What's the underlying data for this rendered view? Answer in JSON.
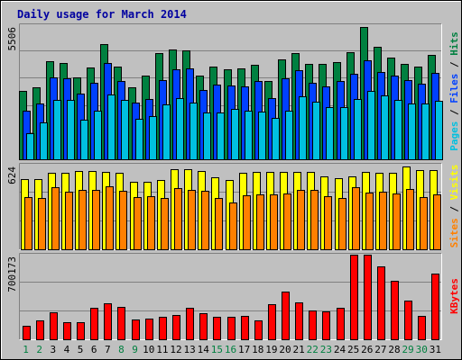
{
  "chart_data": {
    "title": "Daily usage for March 2014",
    "type": "bar",
    "categories": [
      "1",
      "2",
      "3",
      "4",
      "5",
      "6",
      "7",
      "8",
      "9",
      "10",
      "11",
      "12",
      "13",
      "14",
      "15",
      "16",
      "17",
      "18",
      "19",
      "20",
      "21",
      "22",
      "23",
      "24",
      "25",
      "26",
      "27",
      "28",
      "29",
      "30",
      "31"
    ],
    "weekend_days": [
      "1",
      "2",
      "8",
      "9",
      "15",
      "16",
      "22",
      "23",
      "29",
      "30"
    ],
    "panels": [
      {
        "id": "pages-files-hits",
        "max_label": "5506",
        "ymax": 5506,
        "right_label": [
          {
            "text": "Pages",
            "color": "#00c0e0"
          },
          {
            "text": " / ",
            "color": "#000000"
          },
          {
            "text": "Files",
            "color": "#0040ff"
          },
          {
            "text": " / ",
            "color": "#000000"
          },
          {
            "text": "Hits",
            "color": "#008040"
          }
        ],
        "series": [
          {
            "name": "Hits",
            "color": "#008040",
            "values": [
              2790,
              2940,
              4020,
              3950,
              3380,
              3780,
              4730,
              3810,
              2940,
              3440,
              4370,
              4500,
              4460,
              3420,
              3820,
              3690,
              3750,
              3890,
              3210,
              4120,
              4350,
              3920,
              3900,
              3980,
              4380,
              5450,
              4610,
              4160,
              3900,
              3820,
              4280
            ]
          },
          {
            "name": "Files",
            "color": "#0040ff",
            "values": [
              2000,
              2290,
              3360,
              3330,
              2710,
              3150,
              3960,
              3230,
              2330,
              2480,
              3270,
              3680,
              3720,
              2850,
              3050,
              3030,
              3010,
              3230,
              2530,
              3340,
              3640,
              3130,
              3000,
              3200,
              3510,
              4050,
              3570,
              3450,
              3250,
              3110,
              3530
            ]
          },
          {
            "name": "Pages",
            "color": "#00c0e0",
            "values": [
              1070,
              1510,
              2430,
              2440,
              1610,
              1990,
              2650,
              2440,
              1680,
              1760,
              2260,
              2500,
              2340,
              1940,
              1930,
              2070,
              1980,
              1950,
              1700,
              1990,
              2570,
              2380,
              2150,
              2150,
              2470,
              2800,
              2620,
              2450,
              2300,
              2290,
              2400
            ]
          }
        ]
      },
      {
        "id": "sites-visits",
        "max_label": "624",
        "ymax": 624,
        "right_label": [
          {
            "text": "Sites",
            "color": "#ff8000"
          },
          {
            "text": " / ",
            "color": "#000000"
          },
          {
            "text": "Visits",
            "color": "#ffff00"
          }
        ],
        "series": [
          {
            "name": "Visits",
            "color": "#ffff00",
            "values": [
              518,
              515,
              567,
              562,
              580,
              580,
              574,
              563,
              497,
              499,
              511,
              588,
              588,
              578,
              530,
              512,
              563,
              568,
              568,
              568,
              570,
              570,
              535,
              525,
              535,
              570,
              565,
              564,
              612,
              582,
              585
            ]
          },
          {
            "name": "Sites",
            "color": "#ff8000",
            "values": [
              387,
              380,
              455,
              426,
              438,
              435,
              463,
              431,
              387,
              391,
              379,
              453,
              441,
              430,
              378,
              348,
              400,
              407,
              404,
              414,
              438,
              439,
              390,
              381,
              460,
              419,
              428,
              411,
              443,
              384,
              406
            ]
          }
        ]
      },
      {
        "id": "kbytes",
        "max_label": "700173",
        "ymax": 700173,
        "right_label": [
          {
            "text": "KBytes",
            "color": "#ff0000"
          }
        ],
        "series": [
          {
            "name": "KBytes",
            "color": "#ff0000",
            "values": [
              115000,
              154000,
              222000,
              140000,
              138000,
              258000,
              298000,
              271000,
              162000,
              170000,
              189000,
              202000,
              264000,
              219000,
              184000,
              187000,
              196000,
              157000,
              290000,
              393000,
              308000,
              242000,
              233000,
              259000,
              724000,
              726000,
              605000,
              482000,
              317000,
              194000,
              545000
            ]
          }
        ]
      }
    ]
  }
}
